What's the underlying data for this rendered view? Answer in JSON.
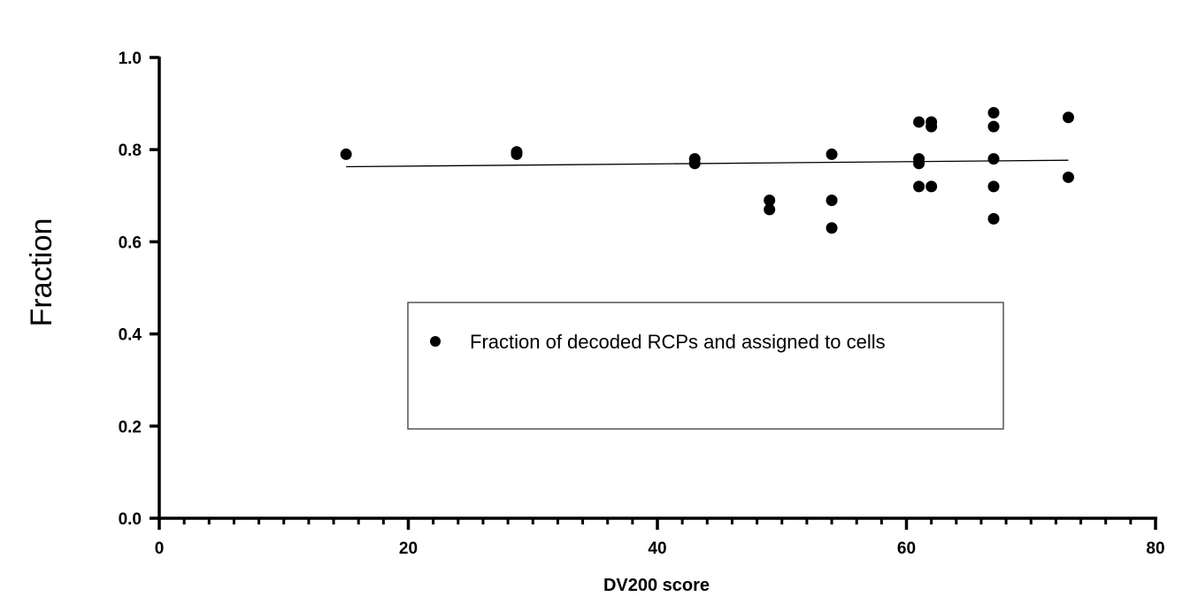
{
  "chart_data": {
    "type": "scatter",
    "title": "",
    "xlabel": "DV200 score",
    "ylabel": "Fraction",
    "xlim": [
      0,
      80
    ],
    "ylim": [
      0.0,
      1.0
    ],
    "x_ticks": [
      0,
      20,
      40,
      60,
      80
    ],
    "x_tick_labels": [
      "0",
      "20",
      "40",
      "60",
      "80"
    ],
    "x_minor_step": 2,
    "y_ticks": [
      0.0,
      0.2,
      0.4,
      0.6,
      0.8,
      1.0
    ],
    "y_tick_labels": [
      "0.0",
      "0.2",
      "0.4",
      "0.6",
      "0.8",
      "1.0"
    ],
    "grid": false,
    "legend_position": "center",
    "series": [
      {
        "name": "Fraction of decoded RCPs and assigned to cells",
        "color": "#000000",
        "points": [
          {
            "x": 15,
            "y": 0.79
          },
          {
            "x": 28.7,
            "y": 0.795
          },
          {
            "x": 28.7,
            "y": 0.79
          },
          {
            "x": 43,
            "y": 0.78
          },
          {
            "x": 43,
            "y": 0.77
          },
          {
            "x": 49,
            "y": 0.69
          },
          {
            "x": 49,
            "y": 0.67
          },
          {
            "x": 54,
            "y": 0.79
          },
          {
            "x": 54,
            "y": 0.69
          },
          {
            "x": 54,
            "y": 0.63
          },
          {
            "x": 61,
            "y": 0.86
          },
          {
            "x": 61,
            "y": 0.78
          },
          {
            "x": 61,
            "y": 0.77
          },
          {
            "x": 61,
            "y": 0.72
          },
          {
            "x": 62,
            "y": 0.86
          },
          {
            "x": 62,
            "y": 0.85
          },
          {
            "x": 62,
            "y": 0.72
          },
          {
            "x": 67,
            "y": 0.88
          },
          {
            "x": 67,
            "y": 0.85
          },
          {
            "x": 67,
            "y": 0.78
          },
          {
            "x": 67,
            "y": 0.72
          },
          {
            "x": 67,
            "y": 0.65
          },
          {
            "x": 73,
            "y": 0.87
          },
          {
            "x": 73,
            "y": 0.74
          }
        ]
      }
    ],
    "trendline": {
      "type": "linear",
      "x": [
        15,
        73
      ],
      "y": [
        0.763,
        0.777
      ],
      "color": "#000000"
    }
  }
}
